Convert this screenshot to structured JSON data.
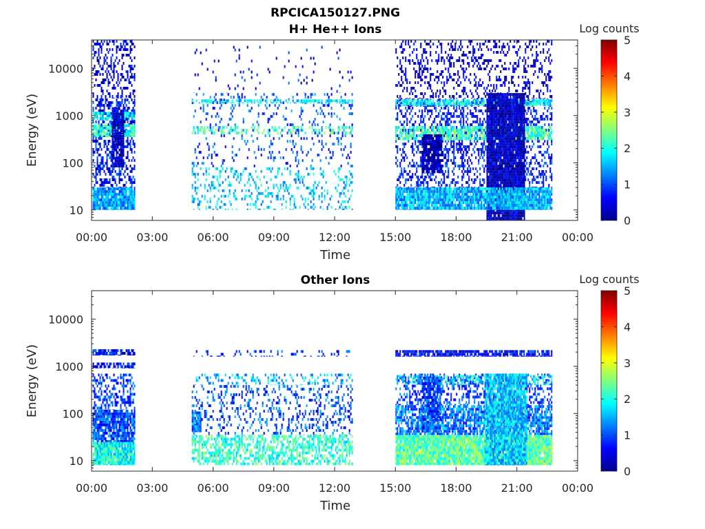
{
  "figure": {
    "title": "RPCICA150127.PNG"
  },
  "chart_data": [
    {
      "type": "heatmap",
      "title": "H+ He++ Ions",
      "xlabel": "Time",
      "ylabel": "Energy (eV)",
      "x_ticks": [
        "00:00",
        "03:00",
        "06:00",
        "09:00",
        "12:00",
        "15:00",
        "18:00",
        "21:00",
        "00:00"
      ],
      "xlim_hours": [
        0,
        24
      ],
      "y_scale": "log",
      "y_ticks": [
        "10",
        "100",
        "1000",
        "10000"
      ],
      "ylim": [
        6,
        40000
      ],
      "colorbar": {
        "label": "Log counts",
        "range": [
          0,
          5
        ],
        "ticks": [
          "0",
          "1",
          "2",
          "3",
          "4",
          "5"
        ],
        "colormap": "jet"
      },
      "data_intervals_hours": [
        [
          0.05,
          2.1
        ],
        [
          4.95,
          12.85
        ],
        [
          15.0,
          22.75
        ]
      ],
      "bands": [
        {
          "t": [
            0.05,
            2.1
          ],
          "e": [
            10,
            30
          ],
          "level": 1.4,
          "dens": 0.95
        },
        {
          "t": [
            0.05,
            2.1
          ],
          "e": [
            30,
            2300
          ],
          "level": 0.7,
          "dens": 0.45
        },
        {
          "t": [
            0.05,
            2.1
          ],
          "e": [
            2300,
            40000
          ],
          "level": 0.4,
          "dens": 0.35
        },
        {
          "t": [
            0.05,
            2.1
          ],
          "e": [
            350,
            650
          ],
          "level": 2.1,
          "dens": 0.8
        },
        {
          "t": [
            0.05,
            2.1
          ],
          "e": [
            800,
            1200
          ],
          "level": 1.8,
          "dens": 0.8
        },
        {
          "t": [
            1.0,
            1.6
          ],
          "e": [
            80,
            1500
          ],
          "level": 0.3,
          "dens": 0.9
        },
        {
          "t": [
            4.95,
            12.85
          ],
          "e": [
            10,
            80
          ],
          "level": 1.6,
          "dens": 0.2
        },
        {
          "t": [
            4.95,
            12.85
          ],
          "e": [
            80,
            3000
          ],
          "level": 1.0,
          "dens": 0.12
        },
        {
          "t": [
            4.95,
            12.85
          ],
          "e": [
            1800,
            2200
          ],
          "level": 1.8,
          "dens": 0.5
        },
        {
          "t": [
            4.95,
            12.85
          ],
          "e": [
            400,
            600
          ],
          "level": 2.2,
          "dens": 0.3
        },
        {
          "t": [
            4.95,
            12.85
          ],
          "e": [
            3000,
            30000
          ],
          "level": 0.6,
          "dens": 0.03
        },
        {
          "t": [
            15.0,
            22.75
          ],
          "e": [
            10,
            30
          ],
          "level": 1.5,
          "dens": 0.95
        },
        {
          "t": [
            15.0,
            22.75
          ],
          "e": [
            30,
            2300
          ],
          "level": 0.7,
          "dens": 0.35
        },
        {
          "t": [
            15.0,
            22.75
          ],
          "e": [
            2300,
            40000
          ],
          "level": 0.3,
          "dens": 0.25
        },
        {
          "t": [
            15.0,
            22.75
          ],
          "e": [
            1600,
            2200
          ],
          "level": 1.8,
          "dens": 0.8
        },
        {
          "t": [
            15.0,
            22.75
          ],
          "e": [
            300,
            600
          ],
          "level": 2.2,
          "dens": 0.7
        },
        {
          "t": [
            16.3,
            17.3
          ],
          "e": [
            60,
            400
          ],
          "level": 0.2,
          "dens": 0.8
        },
        {
          "t": [
            19.5,
            21.4
          ],
          "e": [
            6,
            3000
          ],
          "level": 0.3,
          "dens": 0.95
        },
        {
          "t": [
            19.5,
            21.4
          ],
          "e": [
            10,
            30
          ],
          "level": 1.6,
          "dens": 0.95
        }
      ]
    },
    {
      "type": "heatmap",
      "title": "Other Ions",
      "xlabel": "Time",
      "ylabel": "Energy (eV)",
      "x_ticks": [
        "00:00",
        "03:00",
        "06:00",
        "09:00",
        "12:00",
        "15:00",
        "18:00",
        "21:00",
        "00:00"
      ],
      "xlim_hours": [
        0,
        24
      ],
      "y_scale": "log",
      "y_ticks": [
        "10",
        "100",
        "1000",
        "10000"
      ],
      "ylim": [
        6,
        40000
      ],
      "colorbar": {
        "label": "Log counts",
        "range": [
          0,
          5
        ],
        "ticks": [
          "0",
          "1",
          "2",
          "3",
          "4",
          "5"
        ],
        "colormap": "jet"
      },
      "data_intervals_hours": [
        [
          0.05,
          2.1
        ],
        [
          4.95,
          12.85
        ],
        [
          15.0,
          22.75
        ]
      ],
      "bands": [
        {
          "t": [
            0.05,
            2.1
          ],
          "e": [
            8,
            25
          ],
          "level": 1.9,
          "dens": 0.95
        },
        {
          "t": [
            0.05,
            2.1
          ],
          "e": [
            25,
            120
          ],
          "level": 1.0,
          "dens": 0.85
        },
        {
          "t": [
            0.05,
            2.1
          ],
          "e": [
            120,
            700
          ],
          "level": 0.9,
          "dens": 0.45
        },
        {
          "t": [
            0.05,
            2.1
          ],
          "e": [
            1700,
            2300
          ],
          "level": 0.7,
          "dens": 0.8
        },
        {
          "t": [
            0.05,
            2.1
          ],
          "e": [
            900,
            1200
          ],
          "level": 0.7,
          "dens": 0.6
        },
        {
          "t": [
            4.95,
            12.85
          ],
          "e": [
            8,
            35
          ],
          "level": 2.1,
          "dens": 0.55
        },
        {
          "t": [
            4.95,
            12.85
          ],
          "e": [
            35,
            400
          ],
          "level": 1.0,
          "dens": 0.22
        },
        {
          "t": [
            4.95,
            5.4
          ],
          "e": [
            40,
            110
          ],
          "level": 1.2,
          "dens": 0.9
        },
        {
          "t": [
            4.95,
            12.85
          ],
          "e": [
            400,
            700
          ],
          "level": 1.5,
          "dens": 0.25
        },
        {
          "t": [
            4.95,
            12.85
          ],
          "e": [
            1600,
            2200
          ],
          "level": 0.8,
          "dens": 0.2
        },
        {
          "t": [
            15.0,
            22.75
          ],
          "e": [
            8,
            35
          ],
          "level": 2.3,
          "dens": 0.95
        },
        {
          "t": [
            15.0,
            22.75
          ],
          "e": [
            35,
            150
          ],
          "level": 1.2,
          "dens": 0.75
        },
        {
          "t": [
            15.0,
            22.75
          ],
          "e": [
            150,
            700
          ],
          "level": 0.9,
          "dens": 0.35
        },
        {
          "t": [
            15.0,
            22.75
          ],
          "e": [
            1600,
            2200
          ],
          "level": 0.6,
          "dens": 0.8
        },
        {
          "t": [
            15.0,
            22.75
          ],
          "e": [
            400,
            650
          ],
          "level": 1.8,
          "dens": 0.5
        },
        {
          "t": [
            19.4,
            21.5
          ],
          "e": [
            8,
            700
          ],
          "level": 1.6,
          "dens": 0.9
        },
        {
          "t": [
            16.3,
            17.2
          ],
          "e": [
            40,
            600
          ],
          "level": 1.0,
          "dens": 0.8
        }
      ]
    }
  ]
}
